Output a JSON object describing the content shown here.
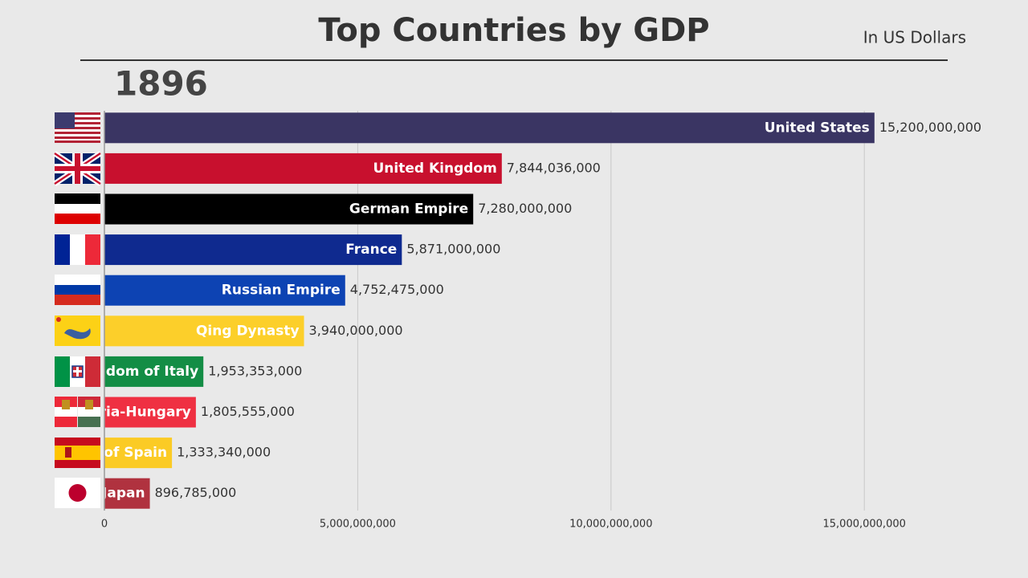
{
  "chart_data": {
    "type": "bar",
    "orientation": "horizontal",
    "title": "Top Countries by GDP",
    "subtitle": "In US Dollars",
    "annotation": "1896",
    "categories": [
      "United States",
      "United Kingdom",
      "German Empire",
      "France",
      "Russian Empire",
      "Qing Dynasty",
      "Kingdom of Italy",
      "Austria-Hungary",
      "Kingdom of Spain",
      "Japan"
    ],
    "values": [
      15200000000,
      7844036000,
      7280000000,
      5871000000,
      4752475000,
      3940000000,
      1953353000,
      1805555000,
      1333340000,
      896785000
    ],
    "value_labels": [
      "15,200,000,000",
      "7,844,036,000",
      "7,280,000,000",
      "5,871,000,000",
      "4,752,475,000",
      "3,940,000,000",
      "1,953,353,000",
      "1,805,555,000",
      "1,333,340,000",
      "896,785,000"
    ],
    "colors": [
      "#3a3563",
      "#c8102e",
      "#000000",
      "#0f2a8f",
      "#0d43b3",
      "#fccf2a",
      "#138d45",
      "#ef3042",
      "#fbcb25",
      "#b0323f"
    ],
    "xlim": [
      0,
      17000000000
    ],
    "xticks": [
      0,
      {
        "value": 5000000000,
        "label": "5,000,000,000"
      },
      {
        "value": 10000000000,
        "label": "10,000,000,000"
      },
      {
        "value": 15000000000,
        "label": "15,000,000,000"
      }
    ],
    "grid": true
  }
}
